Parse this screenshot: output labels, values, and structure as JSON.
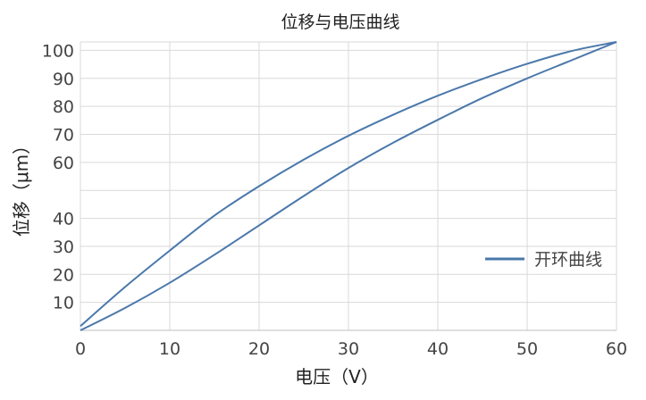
{
  "chart_data": {
    "type": "line",
    "title": "位移与电压曲线",
    "xlabel": "电压（V）",
    "ylabel": "位移（μm）",
    "xlim": [
      0,
      60
    ],
    "x_ticks": [
      "0",
      "10",
      "20",
      "30",
      "40",
      "50",
      "60"
    ],
    "y_ticks": [
      "10",
      "20",
      "30",
      "40",
      "60",
      "70",
      "80",
      "90",
      "100"
    ],
    "grid": true,
    "legend_position": "right",
    "line_color": "#4a78ab",
    "series": [
      {
        "name": "开环曲线",
        "x": [
          0,
          5,
          10,
          15,
          20,
          25,
          30,
          35,
          40,
          45,
          50,
          55,
          60
        ],
        "y": [
          1.5,
          15.5,
          28.5,
          41.0,
          51.5,
          61.0,
          69.5,
          77.0,
          83.8,
          89.8,
          95.2,
          99.8,
          103.0
        ]
      },
      {
        "name": "",
        "x": [
          0,
          5,
          10,
          15,
          20,
          25,
          30,
          35,
          40,
          45,
          50,
          55,
          60
        ],
        "y": [
          0,
          8.0,
          17.0,
          27.0,
          37.5,
          48.0,
          58.0,
          67.0,
          75.2,
          83.0,
          90.0,
          96.5,
          103.0
        ]
      }
    ]
  }
}
